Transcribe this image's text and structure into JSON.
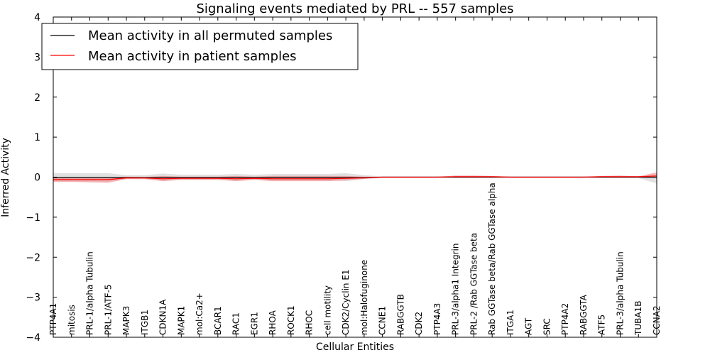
{
  "chart_data": {
    "type": "line",
    "title": "Signaling events mediated by PRL -- 557 samples",
    "xlabel": "Cellular Entities",
    "ylabel": "Inferred Activity",
    "ylim": [
      -4,
      4
    ],
    "yticks": [
      "−4",
      "−3",
      "−2",
      "−1",
      "0",
      "1",
      "2",
      "3",
      "4"
    ],
    "legend_position": "top-left",
    "categories": [
      "PTP4A1",
      "mitosis",
      "PRL-1/alpha Tubulin",
      "PRL-1/ATF-5",
      "MAPK3",
      "ITGB1",
      "CDKN1A",
      "MAPK1",
      "mol:Ca2+",
      "BCAR1",
      "RAC1",
      "EGR1",
      "RHOA",
      "ROCK1",
      "RHOC",
      "cell motility",
      "CDK2/Cyclin E1",
      "mol:Halofuginone",
      "CCNE1",
      "RABGGTB",
      "CDK2",
      "PTP4A3",
      "PRL-3/alpha1 Integrin",
      "PRL-2 /Rab GGTase beta",
      "Rab GGTase beta/Rab GGTase alpha",
      "ITGA1",
      "AGT",
      "SRC",
      "PTP4A2",
      "RABGGTA",
      "ATF5",
      "PRL-3/alpha Tubulin",
      "TUBA1B",
      "CCNA2"
    ],
    "series": [
      {
        "name": "Mean activity in all permuted samples",
        "color": "#000000",
        "band_color": "#c8c8c8",
        "values": [
          -0.01,
          -0.01,
          -0.01,
          -0.01,
          -0.01,
          -0.01,
          -0.01,
          -0.01,
          -0.01,
          -0.01,
          -0.01,
          -0.01,
          -0.01,
          -0.01,
          -0.01,
          -0.01,
          -0.01,
          -0.01,
          0.0,
          0.0,
          0.0,
          0.0,
          0.0,
          0.0,
          0.0,
          0.0,
          0.0,
          0.0,
          0.0,
          0.0,
          0.0,
          0.0,
          0.0,
          0.0
        ],
        "band_high": [
          0.1,
          0.1,
          0.1,
          0.1,
          0.05,
          0.05,
          0.09,
          0.06,
          0.06,
          0.06,
          0.08,
          0.06,
          0.08,
          0.08,
          0.08,
          0.08,
          0.1,
          0.05,
          0.02,
          0.02,
          0.02,
          0.02,
          0.02,
          0.02,
          0.02,
          0.02,
          0.02,
          0.02,
          0.02,
          0.02,
          0.02,
          0.02,
          0.02,
          0.04
        ],
        "band_low": [
          -0.1,
          -0.1,
          -0.1,
          -0.1,
          -0.05,
          -0.05,
          -0.09,
          -0.06,
          -0.06,
          -0.06,
          -0.08,
          -0.06,
          -0.08,
          -0.08,
          -0.08,
          -0.08,
          -0.1,
          -0.05,
          -0.02,
          -0.02,
          -0.02,
          -0.02,
          -0.02,
          -0.02,
          -0.02,
          -0.02,
          -0.02,
          -0.02,
          -0.02,
          -0.02,
          -0.02,
          -0.02,
          -0.02,
          -0.16
        ]
      },
      {
        "name": "Mean activity in patient samples",
        "color": "#ff0000",
        "band_color": "#f08080",
        "values": [
          -0.06,
          -0.06,
          -0.06,
          -0.06,
          -0.02,
          -0.02,
          -0.04,
          -0.03,
          -0.03,
          -0.03,
          -0.04,
          -0.03,
          -0.04,
          -0.04,
          -0.04,
          -0.04,
          -0.03,
          -0.02,
          0.0,
          0.0,
          0.0,
          0.0,
          0.01,
          0.01,
          0.01,
          0.0,
          0.0,
          0.0,
          0.0,
          0.0,
          0.01,
          0.01,
          0.01,
          0.03
        ],
        "band_high": [
          -0.01,
          -0.01,
          -0.01,
          -0.01,
          0.01,
          0.0,
          0.03,
          0.01,
          0.01,
          0.01,
          0.03,
          0.01,
          0.03,
          0.03,
          0.03,
          0.03,
          0.03,
          0.01,
          0.01,
          0.01,
          0.01,
          0.01,
          0.04,
          0.04,
          0.03,
          0.01,
          0.01,
          0.01,
          0.01,
          0.01,
          0.03,
          0.04,
          0.02,
          0.12
        ],
        "band_low": [
          -0.12,
          -0.12,
          -0.13,
          -0.14,
          -0.05,
          -0.05,
          -0.1,
          -0.07,
          -0.07,
          -0.07,
          -0.1,
          -0.07,
          -0.1,
          -0.1,
          -0.1,
          -0.1,
          -0.08,
          -0.04,
          -0.01,
          -0.01,
          -0.01,
          -0.01,
          -0.01,
          -0.01,
          -0.01,
          -0.01,
          -0.01,
          -0.01,
          -0.01,
          -0.01,
          -0.01,
          -0.01,
          -0.01,
          -0.02
        ]
      }
    ]
  }
}
